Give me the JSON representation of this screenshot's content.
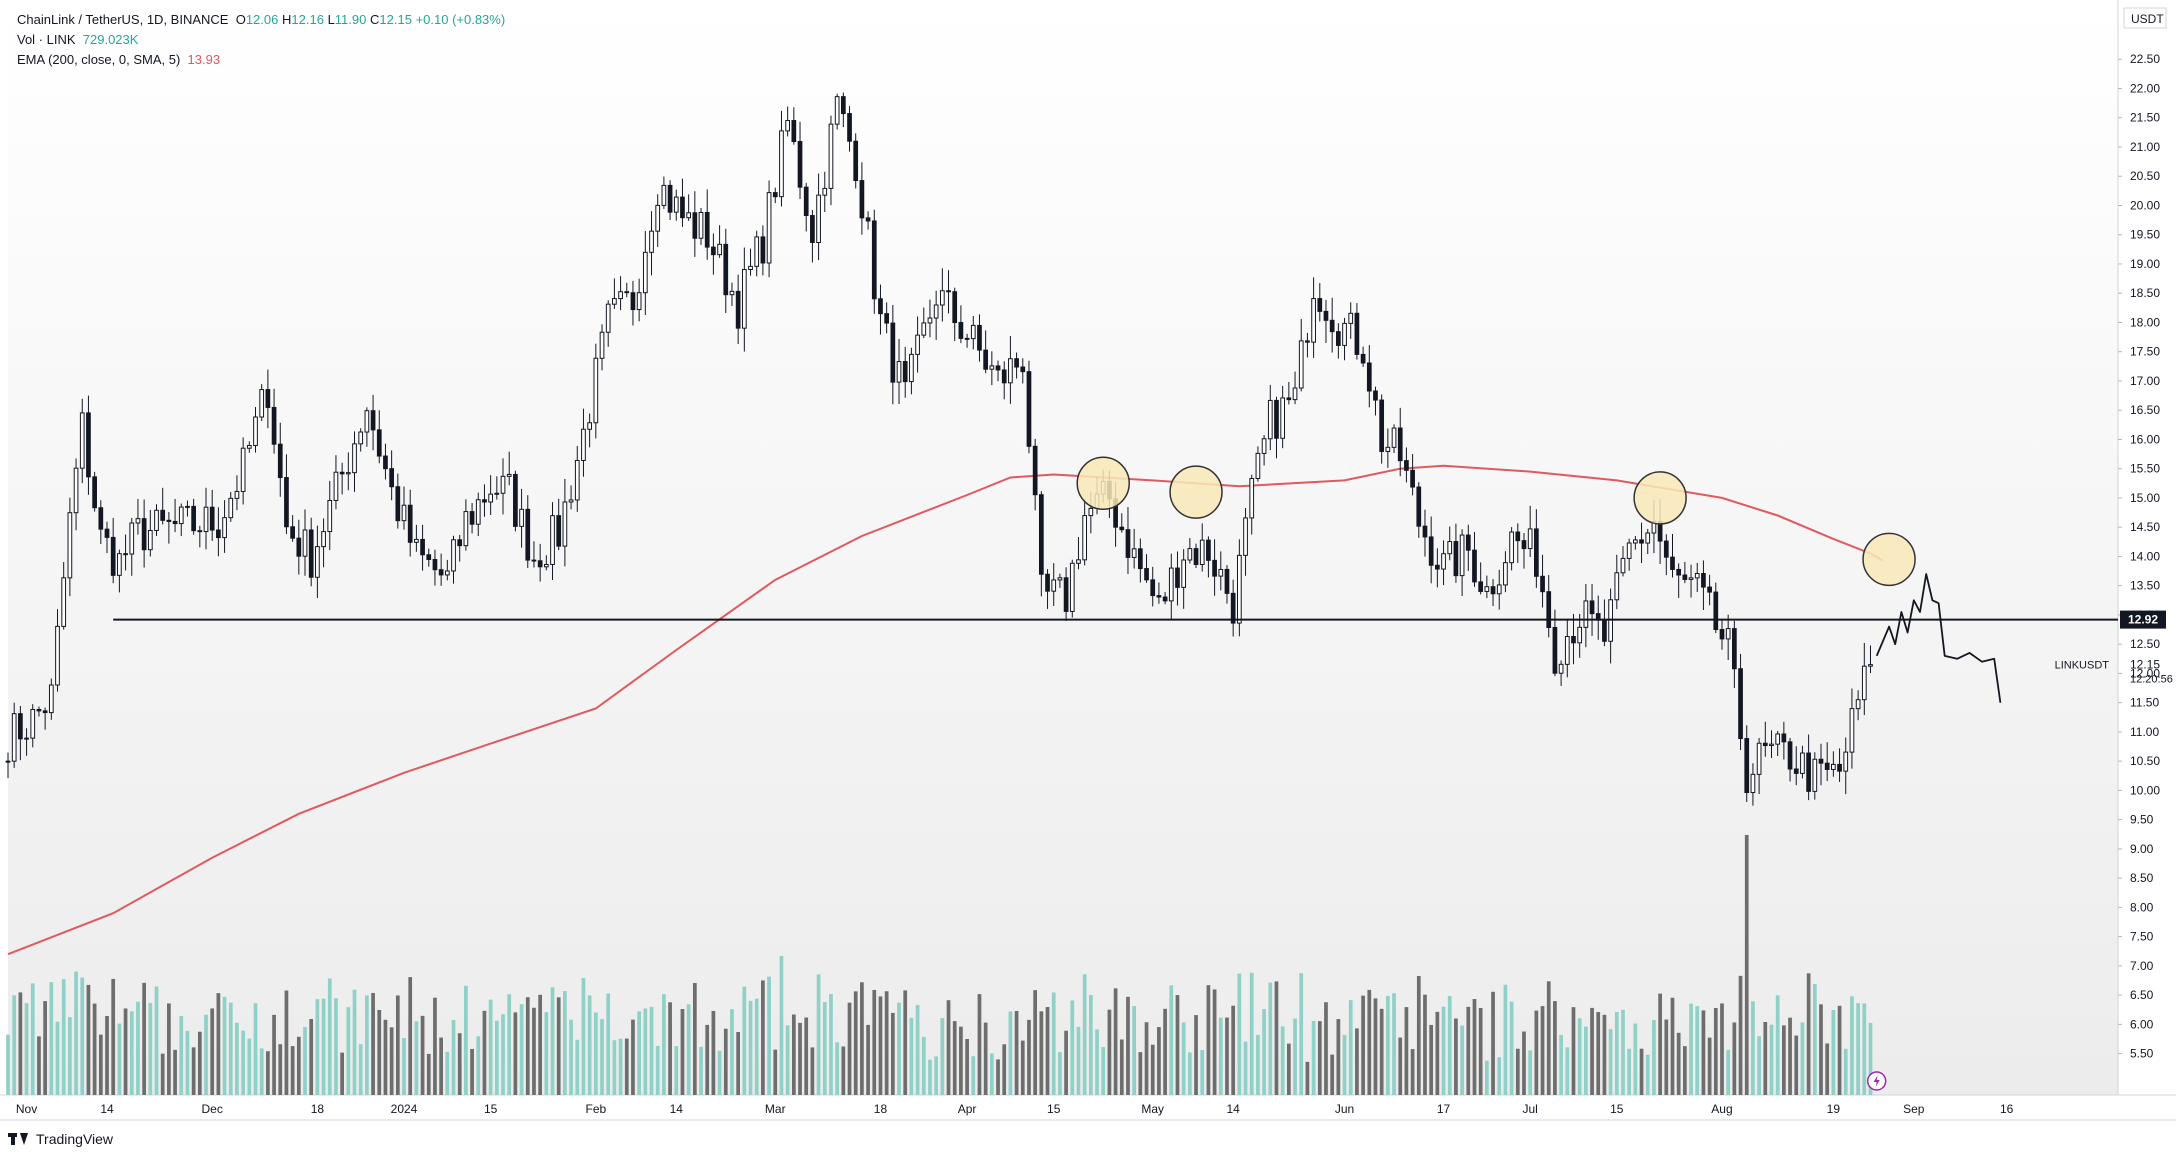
{
  "legend": {
    "symbol": "ChainLink / TetherUS, 1D, BINANCE",
    "o_label": "O",
    "o_val": "12.06",
    "h_label": "H",
    "h_val": "12.16",
    "l_label": "L",
    "l_val": "11.90",
    "c_label": "C",
    "c_val": "12.15",
    "change": "+0.10 (+0.83%)",
    "vol_label": "Vol · LINK",
    "vol_val": "729.023K",
    "ema_label": "EMA (200, close, 0, SMA, 5)",
    "ema_val": "13.93"
  },
  "currency": "USDT",
  "footer": {
    "brand": "TradingView"
  },
  "colors": {
    "up": "#26a69a",
    "down": "#131722",
    "vol_up": "#8fd0c7",
    "vol_down": "#6d6d6d",
    "ema": "#e0595f",
    "circle_fill": "#f8e9b8",
    "circle_stroke": "#333333"
  },
  "chart_data": {
    "type": "candlestick",
    "title": "ChainLink / TetherUS, 1D, BINANCE",
    "ylim": [
      5.1,
      23.0
    ],
    "y_ticks": [
      "5.50",
      "6.00",
      "6.50",
      "7.00",
      "7.50",
      "8.00",
      "8.50",
      "9.00",
      "9.50",
      "10.00",
      "10.50",
      "11.00",
      "11.50",
      "12.00",
      "12.50",
      "13.00",
      "13.50",
      "14.00",
      "14.50",
      "15.00",
      "15.50",
      "16.00",
      "16.50",
      "17.00",
      "17.50",
      "18.00",
      "18.50",
      "19.00",
      "19.50",
      "20.00",
      "20.50",
      "21.00",
      "21.50",
      "22.00",
      "22.50"
    ],
    "x_ticks": [
      "Nov",
      "14",
      "Dec",
      "18",
      "2024",
      "15",
      "Feb",
      "14",
      "Mar",
      "18",
      "Apr",
      "15",
      "May",
      "14",
      "Jun",
      "17",
      "Jul",
      "15",
      "Aug",
      "19",
      "Sep",
      "16"
    ],
    "x_tick_dates": [
      "2023-11-01",
      "2023-11-14",
      "2023-12-01",
      "2023-12-18",
      "2024-01-01",
      "2024-01-15",
      "2024-02-01",
      "2024-02-14",
      "2024-03-01",
      "2024-03-18",
      "2024-04-01",
      "2024-04-15",
      "2024-05-01",
      "2024-05-14",
      "2024-06-01",
      "2024-06-17",
      "2024-07-01",
      "2024-07-15",
      "2024-08-01",
      "2024-08-19",
      "2024-09-01",
      "2024-09-16"
    ],
    "x_range": [
      "2023-10-29",
      "2024-10-04"
    ],
    "ohlc_anchor_closes": [
      [
        "2023-10-29",
        10.9
      ],
      [
        "2023-11-02",
        11.2
      ],
      [
        "2023-11-05",
        11.6
      ],
      [
        "2023-11-08",
        14.6
      ],
      [
        "2023-11-10",
        16.2
      ],
      [
        "2023-11-13",
        14.3
      ],
      [
        "2023-11-16",
        13.9
      ],
      [
        "2023-11-19",
        14.4
      ],
      [
        "2023-11-25",
        14.5
      ],
      [
        "2023-12-02",
        14.6
      ],
      [
        "2023-12-06",
        15.5
      ],
      [
        "2023-12-10",
        16.9
      ],
      [
        "2023-12-13",
        14.5
      ],
      [
        "2023-12-17",
        14.0
      ],
      [
        "2023-12-21",
        15.1
      ],
      [
        "2023-12-26",
        16.6
      ],
      [
        "2023-12-30",
        15.1
      ],
      [
        "2024-01-03",
        14.0
      ],
      [
        "2024-01-08",
        13.6
      ],
      [
        "2024-01-11",
        14.6
      ],
      [
        "2024-01-15",
        15.2
      ],
      [
        "2024-01-18",
        15.1
      ],
      [
        "2024-01-22",
        14.0
      ],
      [
        "2024-01-26",
        14.4
      ],
      [
        "2024-01-30",
        16.1
      ],
      [
        "2024-02-03",
        18.0
      ],
      [
        "2024-02-07",
        18.4
      ],
      [
        "2024-02-11",
        20.4
      ],
      [
        "2024-02-15",
        19.8
      ],
      [
        "2024-02-19",
        19.5
      ],
      [
        "2024-02-24",
        18.3
      ],
      [
        "2024-02-28",
        19.4
      ],
      [
        "2024-03-03",
        21.4
      ],
      [
        "2024-03-07",
        19.6
      ],
      [
        "2024-03-11",
        21.7
      ],
      [
        "2024-03-14",
        20.8
      ],
      [
        "2024-03-18",
        18.0
      ],
      [
        "2024-03-22",
        16.7
      ],
      [
        "2024-03-27",
        18.5
      ],
      [
        "2024-04-01",
        17.8
      ],
      [
        "2024-04-06",
        17.0
      ],
      [
        "2024-04-10",
        17.4
      ],
      [
        "2024-04-13",
        13.3
      ],
      [
        "2024-04-17",
        13.3
      ],
      [
        "2024-04-20",
        14.7
      ],
      [
        "2024-04-24",
        15.0
      ],
      [
        "2024-04-28",
        14.0
      ],
      [
        "2024-05-02",
        13.1
      ],
      [
        "2024-05-06",
        14.1
      ],
      [
        "2024-05-10",
        14.1
      ],
      [
        "2024-05-14",
        13.2
      ],
      [
        "2024-05-17",
        15.0
      ],
      [
        "2024-05-20",
        16.3
      ],
      [
        "2024-05-24",
        16.7
      ],
      [
        "2024-05-27",
        18.7
      ],
      [
        "2024-05-31",
        18.0
      ],
      [
        "2024-06-04",
        17.6
      ],
      [
        "2024-06-07",
        16.0
      ],
      [
        "2024-06-10",
        15.7
      ],
      [
        "2024-06-13",
        14.6
      ],
      [
        "2024-06-17",
        13.8
      ],
      [
        "2024-06-21",
        14.1
      ],
      [
        "2024-06-24",
        13.4
      ],
      [
        "2024-06-28",
        14.3
      ],
      [
        "2024-07-02",
        14.0
      ],
      [
        "2024-07-05",
        12.4
      ],
      [
        "2024-07-09",
        13.0
      ],
      [
        "2024-07-13",
        12.6
      ],
      [
        "2024-07-17",
        14.1
      ],
      [
        "2024-07-21",
        14.6
      ],
      [
        "2024-07-24",
        13.6
      ],
      [
        "2024-07-28",
        13.4
      ],
      [
        "2024-08-02",
        12.4
      ],
      [
        "2024-08-05",
        10.3
      ],
      [
        "2024-08-08",
        10.6
      ],
      [
        "2024-08-12",
        10.6
      ],
      [
        "2024-08-16",
        10.2
      ],
      [
        "2024-08-20",
        10.3
      ],
      [
        "2024-08-23",
        11.5
      ],
      [
        "2024-08-25",
        12.15
      ]
    ],
    "volume_scale_note": "volume series drawn relative (tallest bar ~ 2024-08-05)",
    "horizontal_line": {
      "value": 12.92,
      "label": "12.92",
      "from": "2023-11-15"
    },
    "price_tags": {
      "current": "12.15",
      "symbol": "LINKUSDT",
      "countdown": "12:20:56"
    },
    "ema_series": [
      [
        "2023-10-29",
        7.2
      ],
      [
        "2023-11-15",
        7.9
      ],
      [
        "2023-12-01",
        8.85
      ],
      [
        "2023-12-15",
        9.6
      ],
      [
        "2024-01-01",
        10.3
      ],
      [
        "2024-01-15",
        10.8
      ],
      [
        "2024-02-01",
        11.4
      ],
      [
        "2024-02-14",
        12.4
      ],
      [
        "2024-03-01",
        13.6
      ],
      [
        "2024-03-15",
        14.35
      ],
      [
        "2024-04-01",
        15.05
      ],
      [
        "2024-04-08",
        15.35
      ],
      [
        "2024-04-15",
        15.4
      ],
      [
        "2024-05-01",
        15.3
      ],
      [
        "2024-05-15",
        15.2
      ],
      [
        "2024-06-01",
        15.3
      ],
      [
        "2024-06-10",
        15.5
      ],
      [
        "2024-06-17",
        15.55
      ],
      [
        "2024-07-01",
        15.45
      ],
      [
        "2024-07-15",
        15.3
      ],
      [
        "2024-08-01",
        15.0
      ],
      [
        "2024-08-10",
        14.7
      ],
      [
        "2024-08-19",
        14.3
      ],
      [
        "2024-08-25",
        14.05
      ],
      [
        "2024-08-27",
        13.93
      ]
    ],
    "annotation_circles": [
      "2024-04-23",
      "2024-05-08",
      "2024-07-22",
      "2024-08-28"
    ],
    "projection_path": [
      [
        "2024-08-26",
        12.3
      ],
      [
        "2024-08-28",
        12.8
      ],
      [
        "2024-08-29",
        12.5
      ],
      [
        "2024-08-30",
        13.05
      ],
      [
        "2024-08-31",
        12.7
      ],
      [
        "2024-09-01",
        13.25
      ],
      [
        "2024-09-02",
        13.05
      ],
      [
        "2024-09-03",
        13.7
      ],
      [
        "2024-09-04",
        13.25
      ],
      [
        "2024-09-05",
        13.2
      ],
      [
        "2024-09-06",
        12.3
      ],
      [
        "2024-09-08",
        12.25
      ],
      [
        "2024-09-10",
        12.35
      ],
      [
        "2024-09-12",
        12.2
      ],
      [
        "2024-09-14",
        12.25
      ],
      [
        "2024-09-15",
        11.5
      ]
    ]
  }
}
